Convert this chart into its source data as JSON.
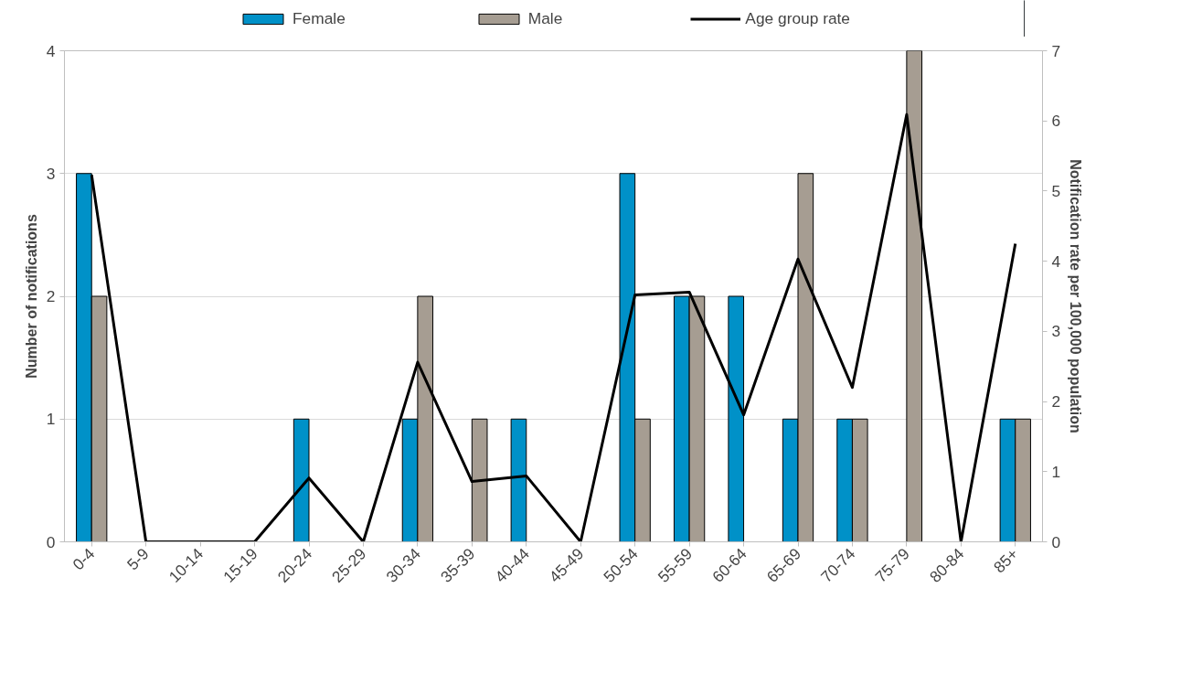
{
  "chart_data": {
    "type": "bar",
    "ylabel": "Number of notifications",
    "y2label": "Notification rate per 100,000 population",
    "categories": [
      "0-4",
      "5-9",
      "10-14",
      "15-19",
      "20-24",
      "25-29",
      "30-34",
      "35-39",
      "40-44",
      "45-49",
      "50-54",
      "55-59",
      "60-64",
      "65-69",
      "70-74",
      "75-79",
      "80-84",
      "85+"
    ],
    "series": [
      {
        "name": "Female",
        "color": "#0091c8",
        "values": [
          3,
          0,
          0,
          0,
          1,
          0,
          1,
          0,
          1,
          0,
          3,
          2,
          2,
          1,
          1,
          0,
          0,
          1
        ]
      },
      {
        "name": "Male",
        "color": "#a69d92",
        "values": [
          2,
          0,
          0,
          0,
          0,
          0,
          2,
          1,
          0,
          0,
          1,
          2,
          0,
          3,
          1,
          4,
          0,
          1
        ]
      },
      {
        "name": "Age group rate",
        "type": "line",
        "axis": "y2",
        "color": "#000000",
        "values": [
          5.23,
          0,
          0,
          0,
          0.91,
          0,
          2.56,
          0.86,
          0.94,
          0,
          3.52,
          3.56,
          1.81,
          4.03,
          2.2,
          6.09,
          0,
          4.25
        ]
      }
    ],
    "ylim": [
      0,
      4
    ],
    "yticks": [
      0,
      1,
      2,
      3,
      4
    ],
    "y2lim": [
      0,
      7
    ],
    "y2ticks": [
      0,
      1,
      2,
      3,
      4,
      5,
      6,
      7
    ],
    "grid": "y",
    "legend": "top"
  }
}
